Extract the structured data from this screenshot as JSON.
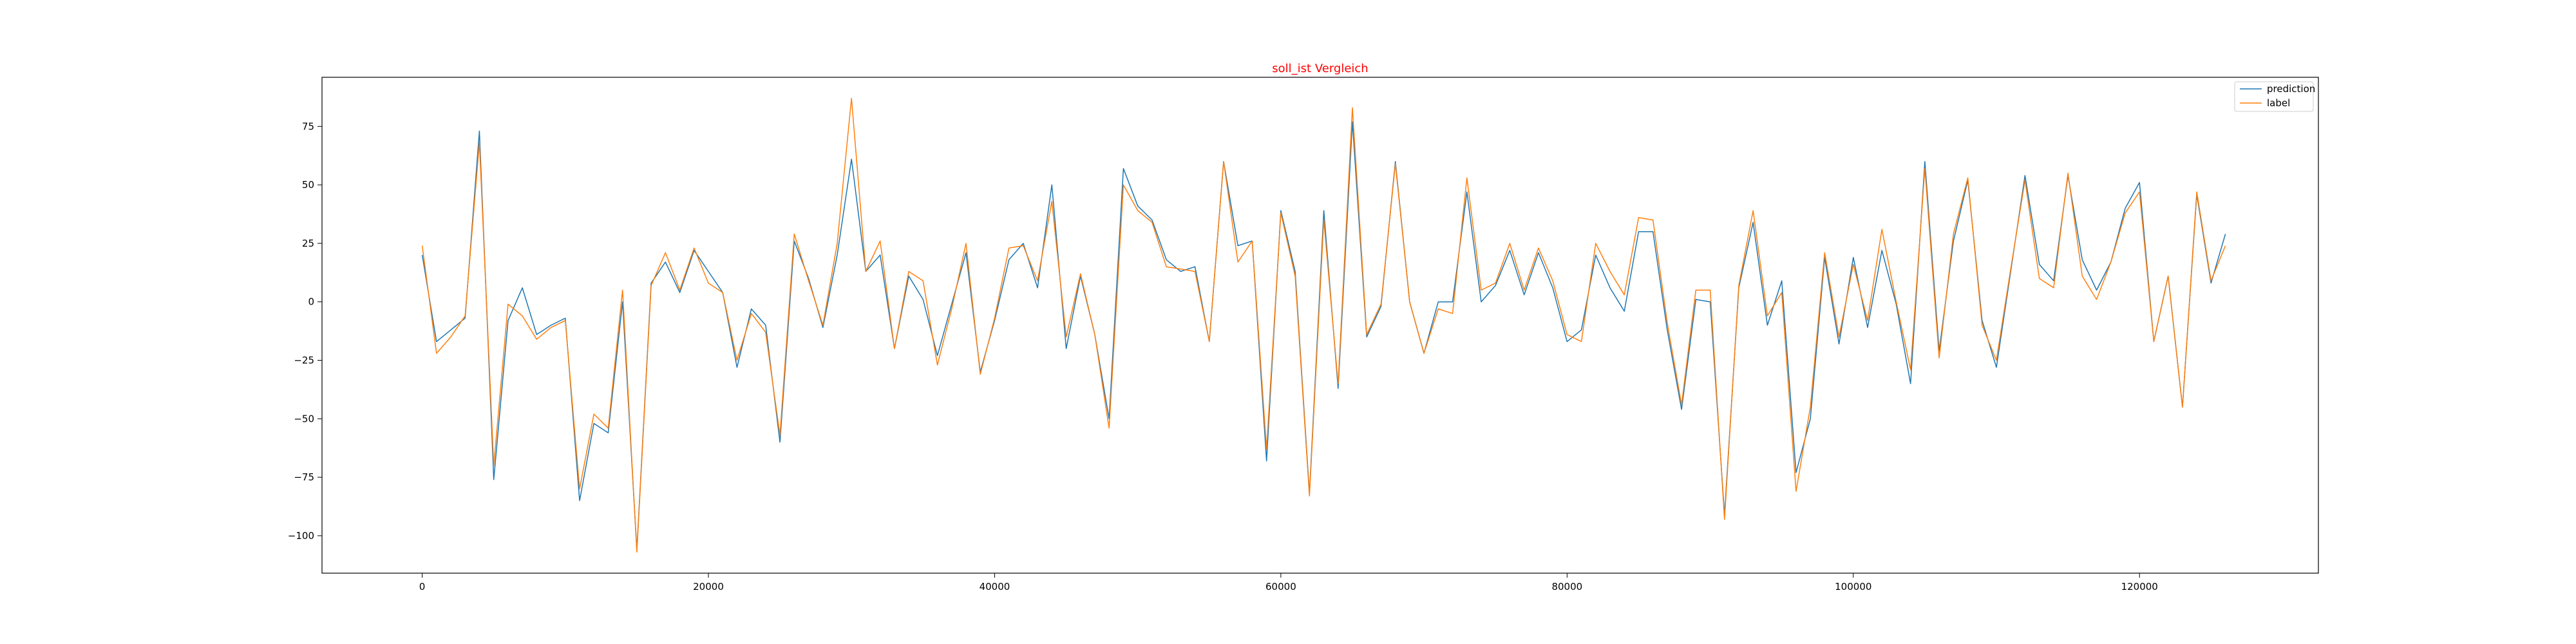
{
  "chart_data": {
    "type": "line",
    "title": "soll_ist Vergleich",
    "xlabel": "",
    "ylabel": "",
    "xlim": [
      -7000,
      132500
    ],
    "ylim": [
      -116,
      96
    ],
    "xticks": [
      0,
      20000,
      40000,
      60000,
      80000,
      100000,
      120000
    ],
    "xtick_labels": [
      "0",
      "20000",
      "40000",
      "60000",
      "80000",
      "100000",
      "120000"
    ],
    "yticks": [
      -100,
      -75,
      -50,
      -25,
      0,
      25,
      50,
      75
    ],
    "ytick_labels": [
      "−100",
      "−75",
      "−50",
      "−25",
      "0",
      "25",
      "50",
      "75"
    ],
    "grid": false,
    "legend_position": "top-right",
    "x": [
      0,
      1000,
      2000,
      3000,
      4000,
      5000,
      6000,
      7000,
      8000,
      9000,
      10000,
      11000,
      12000,
      13000,
      14000,
      15000,
      16000,
      17000,
      18000,
      19000,
      20000,
      21000,
      22000,
      23000,
      24000,
      25000,
      26000,
      27000,
      28000,
      29000,
      30000,
      31000,
      32000,
      33000,
      34000,
      35000,
      36000,
      37000,
      38000,
      39000,
      40000,
      41000,
      42000,
      43000,
      44000,
      45000,
      46000,
      47000,
      48000,
      49000,
      50000,
      51000,
      52000,
      53000,
      54000,
      55000,
      56000,
      57000,
      58000,
      59000,
      60000,
      61000,
      62000,
      63000,
      64000,
      65000,
      66000,
      67000,
      68000,
      69000,
      70000,
      71000,
      72000,
      73000,
      74000,
      75000,
      76000,
      77000,
      78000,
      79000,
      80000,
      81000,
      82000,
      83000,
      84000,
      85000,
      86000,
      87000,
      88000,
      89000,
      90000,
      91000,
      92000,
      93000,
      94000,
      95000,
      96000,
      97000,
      98000,
      99000,
      100000,
      101000,
      102000,
      103000,
      104000,
      105000,
      106000,
      107000,
      108000,
      109000,
      110000,
      111000,
      112000,
      113000,
      114000,
      115000,
      116000,
      117000,
      118000,
      119000,
      120000,
      121000,
      122000,
      123000,
      124000,
      125000,
      126000
    ],
    "series": [
      {
        "name": "prediction",
        "color": "#1f77b4",
        "values": [
          20,
          -17,
          -12,
          -7,
          73,
          -76,
          -8,
          6,
          -14,
          -10,
          -7,
          -85,
          -52,
          -56,
          0,
          -106,
          8,
          17,
          4,
          22,
          13,
          4,
          -28,
          -3,
          -10,
          -60,
          26,
          10,
          -11,
          20,
          61,
          13,
          20,
          -20,
          11,
          1,
          -23,
          -1,
          21,
          -30,
          -8,
          18,
          25,
          6,
          50,
          -20,
          11,
          -14,
          -50,
          57,
          41,
          35,
          18,
          13,
          15,
          -17,
          60,
          24,
          26,
          -68,
          39,
          13,
          -82,
          39,
          -37,
          77,
          -15,
          -2,
          60,
          0,
          -22,
          0,
          0,
          47,
          0,
          7,
          22,
          3,
          21,
          6,
          -17,
          -12,
          20,
          6,
          -4,
          30,
          30,
          -12,
          -46,
          1,
          0,
          -91,
          6,
          34,
          -10,
          9,
          -73,
          -50,
          19,
          -18,
          19,
          -11,
          22,
          -1,
          -35,
          60,
          -21,
          26,
          52,
          -8,
          -28,
          13,
          54,
          16,
          9,
          54,
          18,
          5,
          17,
          40,
          51,
          -17,
          11,
          -45,
          46,
          8,
          29
        ]
      },
      {
        "name": "label",
        "color": "#ff7f0e",
        "values": [
          24,
          -22,
          -15,
          -6,
          68,
          -70,
          -1,
          -6,
          -16,
          -11,
          -8,
          -80,
          -48,
          -54,
          5,
          -107,
          7,
          21,
          5,
          23,
          8,
          4,
          -25,
          -5,
          -13,
          -57,
          29,
          9,
          -10,
          25,
          87,
          13,
          26,
          -20,
          13,
          9,
          -27,
          -3,
          25,
          -31,
          -7,
          23,
          24,
          9,
          43,
          -15,
          12,
          -14,
          -54,
          50,
          39,
          34,
          15,
          14,
          13,
          -17,
          60,
          17,
          26,
          -63,
          38,
          11,
          -83,
          35,
          -35,
          83,
          -14,
          -1,
          59,
          0,
          -22,
          -3,
          -5,
          53,
          5,
          8,
          25,
          5,
          23,
          9,
          -14,
          -17,
          25,
          13,
          3,
          36,
          35,
          -9,
          -44,
          5,
          5,
          -93,
          7,
          39,
          -6,
          4,
          -81,
          -45,
          21,
          -15,
          16,
          -8,
          31,
          0,
          -29,
          57,
          -24,
          29,
          53,
          -10,
          -25,
          14,
          52,
          10,
          6,
          55,
          11,
          1,
          17,
          38,
          47,
          -17,
          11,
          -45,
          47,
          9,
          24
        ]
      }
    ]
  }
}
